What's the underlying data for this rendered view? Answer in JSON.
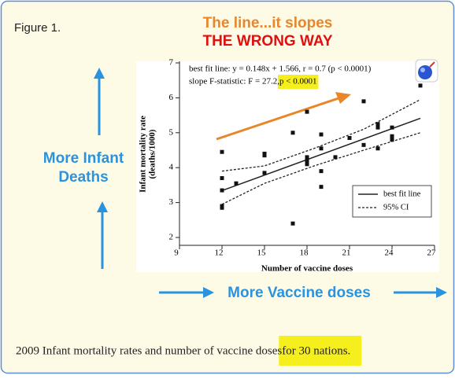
{
  "figure_label": "Figure 1.",
  "headline": "The line...it slopes",
  "headline_emphasis": "THE WRONG WAY",
  "y_direction_label": [
    "More Infant",
    "Deaths"
  ],
  "x_direction_label": "More Vaccine doses",
  "caption": [
    "2009 Infant mortality rates and number of vaccine doses ",
    "for 30 nations."
  ],
  "chart_data": {
    "type": "scatter",
    "annotations": [
      "best fit line: y = 0.148x + 1.566, r = 0.7 (p < 0.0001)",
      "slope F-statistic: F = 27.2, ",
      "p < 0.0001"
    ],
    "x_label": "Number of vaccine doses",
    "y_label": [
      "Infant mortality rate",
      "(deaths/1000)"
    ],
    "x": [
      12,
      12,
      12,
      12,
      12,
      13,
      15,
      15,
      15,
      17,
      17,
      18,
      18,
      18,
      18,
      19,
      19,
      19,
      19,
      20,
      21,
      22,
      22,
      23,
      23,
      23,
      24,
      24,
      24,
      26
    ],
    "values": [
      4.45,
      3.7,
      3.35,
      2.9,
      2.85,
      3.55,
      4.4,
      4.35,
      3.85,
      5.0,
      2.4,
      5.6,
      4.3,
      4.2,
      4.1,
      4.95,
      4.55,
      3.9,
      3.45,
      4.3,
      4.85,
      5.9,
      4.65,
      5.25,
      5.15,
      4.55,
      5.15,
      4.9,
      4.8,
      6.35
    ],
    "color": "#111111",
    "fit": {
      "name": "best fit line",
      "slope": 0.148,
      "intercept": 1.566
    },
    "ci": {
      "name": "95% CI",
      "x": [
        12,
        15,
        18.5,
        22,
        26
      ],
      "upper": [
        3.9,
        4.05,
        4.55,
        5.1,
        5.95
      ],
      "lower": [
        2.95,
        3.55,
        4.05,
        4.5,
        5.0
      ]
    },
    "xlim": [
      9,
      27
    ],
    "xticks": [
      9,
      12,
      15,
      18,
      21,
      24,
      27
    ],
    "ylim": [
      2,
      7
    ],
    "yticks": [
      2,
      3,
      4,
      5,
      6,
      7
    ]
  }
}
